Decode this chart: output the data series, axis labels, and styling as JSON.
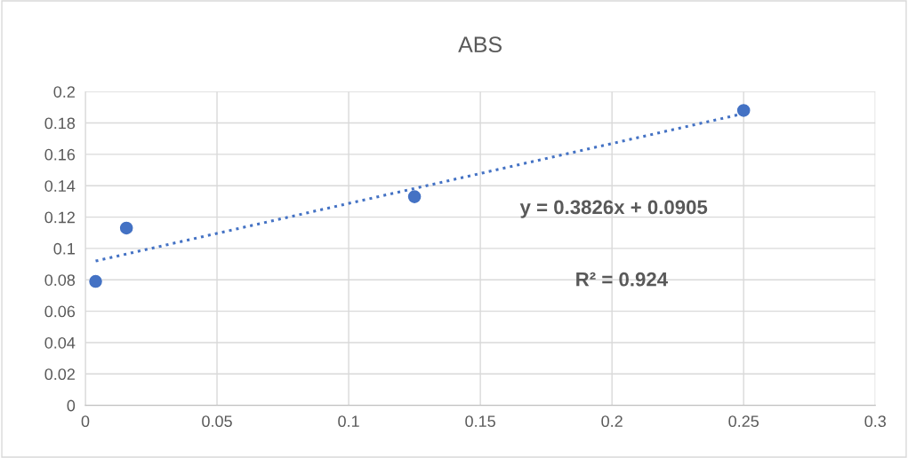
{
  "chart_data": {
    "type": "scatter",
    "title": "ABS",
    "series": [
      {
        "color": "#4472c4",
        "marker": "circle",
        "x": [
          0.0039,
          0.0156,
          0.125,
          0.25
        ],
        "values": [
          0.079,
          0.113,
          0.133,
          0.188
        ]
      },
      {
        "type": "line",
        "color": "#4472c4",
        "line_style": "dotted",
        "marker": "none",
        "x": [
          0.0039,
          0.25
        ],
        "values": [
          0.092,
          0.186
        ]
      }
    ],
    "annotations": [
      "y = 0.3826x + 0.0905",
      "R² = 0.924"
    ],
    "xlim": [
      0,
      0.3
    ],
    "xticks": [
      0,
      0.05,
      0.1,
      0.15,
      0.2,
      0.25,
      0.3
    ],
    "ylim": [
      0,
      0.2
    ],
    "yticks": [
      0,
      0.02,
      0.04,
      0.06,
      0.08,
      0.1,
      0.12,
      0.14,
      0.16,
      0.18,
      0.2
    ],
    "grid": true,
    "legend": false
  }
}
